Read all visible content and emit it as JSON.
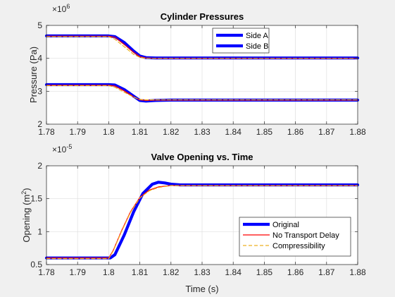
{
  "chart_data": [
    {
      "type": "line",
      "title": "Cylinder Pressures",
      "xlabel": "",
      "ylabel": "Pressure (Pa)",
      "xlim": [
        1.78,
        1.88
      ],
      "ylim": [
        2,
        5
      ],
      "y_multiplier": "×10^6",
      "y_exponent_base": "×10",
      "y_exponent_power": "6",
      "xticks": [
        "1.78",
        "1.79",
        "1.8",
        "1.81",
        "1.82",
        "1.83",
        "1.84",
        "1.85",
        "1.86",
        "1.87",
        "1.88"
      ],
      "yticks": [
        "2",
        "3",
        "4",
        "5"
      ],
      "grid": true,
      "legend_position": "top-right",
      "legend": [
        {
          "label": "Side A",
          "color": "#0000ff"
        },
        {
          "label": "Side B",
          "color": "#0000ff"
        }
      ],
      "series": [
        {
          "name": "Side A",
          "style": "original",
          "color": "#0000ff",
          "x": [
            1.78,
            1.8,
            1.802,
            1.805,
            1.808,
            1.81,
            1.812,
            1.815,
            1.82,
            1.83,
            1.88
          ],
          "y": [
            4.68,
            4.68,
            4.66,
            4.48,
            4.22,
            4.07,
            4.02,
            4.01,
            4.01,
            4.01,
            4.01
          ]
        },
        {
          "name": "",
          "style": "no_delay",
          "color": "#ff0000",
          "x": [
            1.78,
            1.8,
            1.802,
            1.805,
            1.808,
            1.81,
            1.812,
            1.815,
            1.82,
            1.83,
            1.88
          ],
          "y": [
            4.67,
            4.67,
            4.64,
            4.42,
            4.18,
            4.05,
            4.01,
            4.0,
            4.0,
            4.0,
            4.0
          ]
        },
        {
          "name": "",
          "style": "compressibility",
          "color": "#edb120",
          "x": [
            1.78,
            1.8,
            1.802,
            1.805,
            1.808,
            1.81,
            1.812,
            1.815,
            1.82,
            1.83,
            1.88
          ],
          "y": [
            4.66,
            4.66,
            4.58,
            4.35,
            4.12,
            4.03,
            4.0,
            4.0,
            4.0,
            4.0,
            4.0
          ]
        },
        {
          "name": "Side B",
          "style": "original",
          "color": "#0000ff",
          "x": [
            1.78,
            1.8,
            1.802,
            1.805,
            1.808,
            1.81,
            1.812,
            1.815,
            1.82,
            1.83,
            1.88
          ],
          "y": [
            3.2,
            3.2,
            3.19,
            3.05,
            2.85,
            2.72,
            2.7,
            2.72,
            2.73,
            2.73,
            2.73
          ]
        },
        {
          "name": "",
          "style": "no_delay",
          "color": "#ff0000",
          "x": [
            1.78,
            1.8,
            1.802,
            1.805,
            1.808,
            1.81,
            1.812,
            1.815,
            1.82,
            1.83,
            1.88
          ],
          "y": [
            3.18,
            3.18,
            3.16,
            3.01,
            2.83,
            2.74,
            2.72,
            2.73,
            2.73,
            2.73,
            2.73
          ]
        },
        {
          "name": "",
          "style": "compressibility",
          "color": "#edb120",
          "x": [
            1.78,
            1.8,
            1.802,
            1.805,
            1.808,
            1.81,
            1.812,
            1.815,
            1.82,
            1.83,
            1.88
          ],
          "y": [
            3.17,
            3.17,
            3.12,
            2.97,
            2.82,
            2.75,
            2.74,
            2.74,
            2.74,
            2.74,
            2.74
          ]
        }
      ]
    },
    {
      "type": "line",
      "title": "Valve Opening vs. Time",
      "xlabel": "Time (s)",
      "ylabel": "Opening (m",
      "ylabel_superscript": "2",
      "ylabel_suffix": ")",
      "xlim": [
        1.78,
        1.88
      ],
      "ylim": [
        0.5,
        2
      ],
      "y_multiplier": "×10^-5",
      "y_exponent_base": "×10",
      "y_exponent_power": "-5",
      "xticks": [
        "1.78",
        "1.79",
        "1.8",
        "1.81",
        "1.82",
        "1.83",
        "1.84",
        "1.85",
        "1.86",
        "1.87",
        "1.88"
      ],
      "yticks": [
        "0.5",
        "1",
        "1.5",
        "2"
      ],
      "grid": true,
      "legend_position": "bottom-right",
      "legend": [
        {
          "label": "Original",
          "color": "#0000ff"
        },
        {
          "label": "No Transport Delay",
          "color": "#ff0000"
        },
        {
          "label": "Compressibility",
          "color": "#edb120"
        }
      ],
      "series": [
        {
          "name": "Original",
          "style": "original",
          "color": "#0000ff",
          "x": [
            1.78,
            1.8005,
            1.802,
            1.805,
            1.808,
            1.811,
            1.814,
            1.816,
            1.818,
            1.82,
            1.823,
            1.826,
            1.83,
            1.88
          ],
          "y": [
            0.6,
            0.6,
            0.65,
            0.95,
            1.3,
            1.58,
            1.72,
            1.75,
            1.74,
            1.72,
            1.71,
            1.71,
            1.71,
            1.71
          ]
        },
        {
          "name": "No Transport Delay",
          "style": "no_delay",
          "color": "#ff0000",
          "x": [
            1.78,
            1.8,
            1.8015,
            1.804,
            1.807,
            1.81,
            1.813,
            1.816,
            1.82,
            1.825,
            1.83,
            1.88
          ],
          "y": [
            0.6,
            0.6,
            0.72,
            1.0,
            1.3,
            1.52,
            1.63,
            1.68,
            1.7,
            1.7,
            1.7,
            1.7
          ]
        },
        {
          "name": "Compressibility",
          "style": "compressibility",
          "color": "#edb120",
          "x": [
            1.78,
            1.8,
            1.8015,
            1.804,
            1.807,
            1.81,
            1.813,
            1.816,
            1.82,
            1.825,
            1.83,
            1.88
          ],
          "y": [
            0.59,
            0.59,
            0.71,
            0.99,
            1.29,
            1.51,
            1.62,
            1.67,
            1.7,
            1.7,
            1.7,
            1.7
          ]
        }
      ]
    }
  ]
}
